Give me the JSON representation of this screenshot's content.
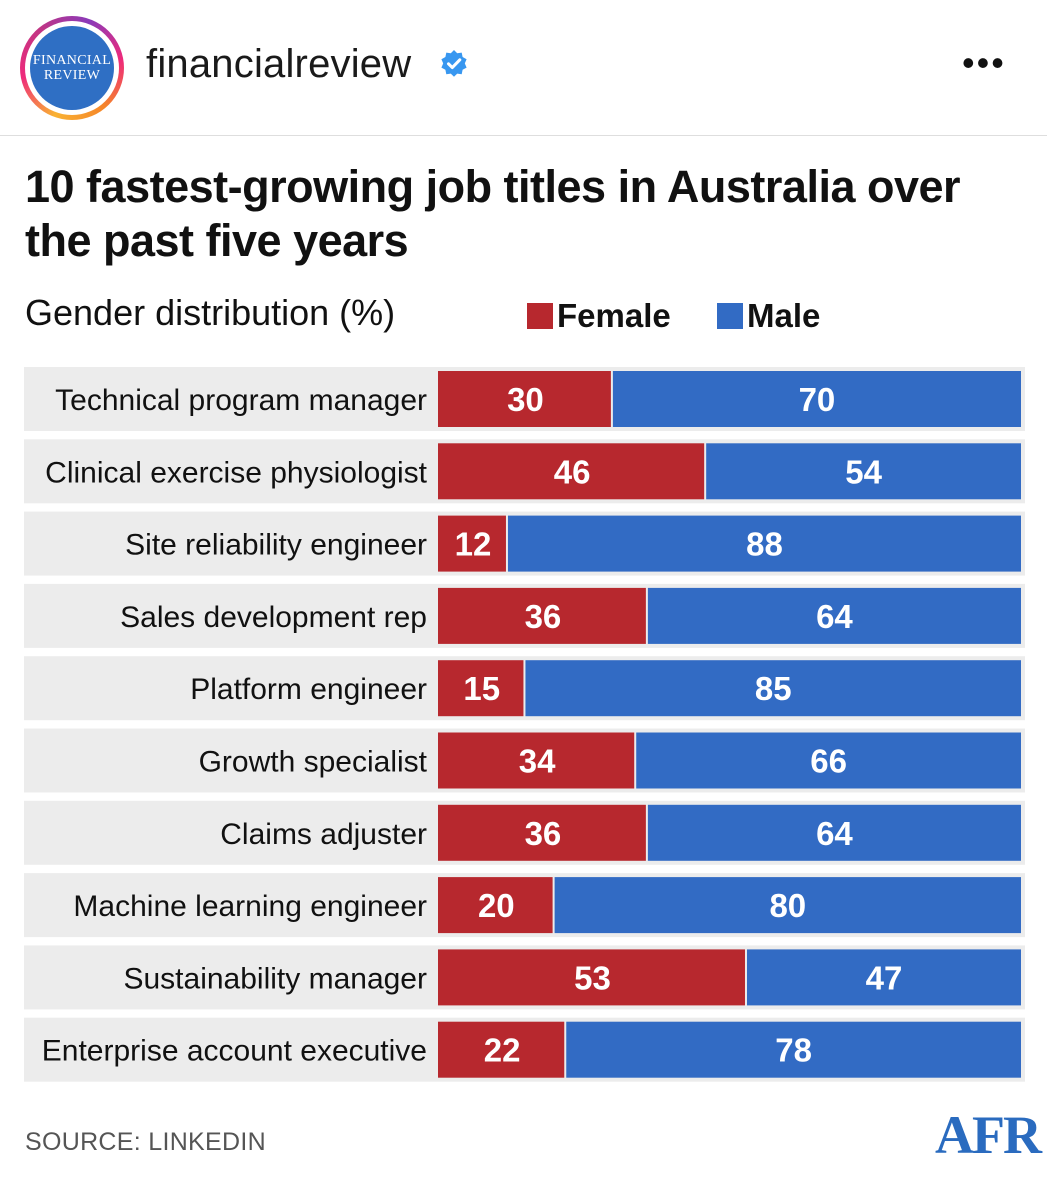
{
  "post": {
    "handle": "financialreview",
    "avatar_line1": "FINANCIAL",
    "avatar_line2": "REVIEW",
    "more_label": "•••"
  },
  "colors": {
    "female": "#b7282e",
    "male": "#326bc4",
    "row_bg": "#ececec",
    "verified": "#3897f0"
  },
  "chart_data": {
    "type": "bar",
    "orientation": "horizontal",
    "stacked": true,
    "title": "10 fastest-growing job titles in Australia over the past five years",
    "subtitle": "Gender distribution (%)",
    "categories": [
      "Technical program manager",
      "Clinical exercise physiologist",
      "Site reliability engineer",
      "Sales development rep",
      "Platform engineer",
      "Growth specialist",
      "Claims adjuster",
      "Machine learning engineer",
      "Sustainability manager",
      "Enterprise account executive"
    ],
    "series": [
      {
        "name": "Female",
        "values": [
          30,
          46,
          12,
          36,
          15,
          34,
          36,
          20,
          53,
          22
        ]
      },
      {
        "name": "Male",
        "values": [
          70,
          54,
          88,
          64,
          85,
          66,
          64,
          80,
          47,
          78
        ]
      }
    ],
    "xlim": [
      0,
      100
    ],
    "legend": "top",
    "source": "SOURCE: LINKEDIN"
  },
  "brand": {
    "logo": "AFR"
  }
}
